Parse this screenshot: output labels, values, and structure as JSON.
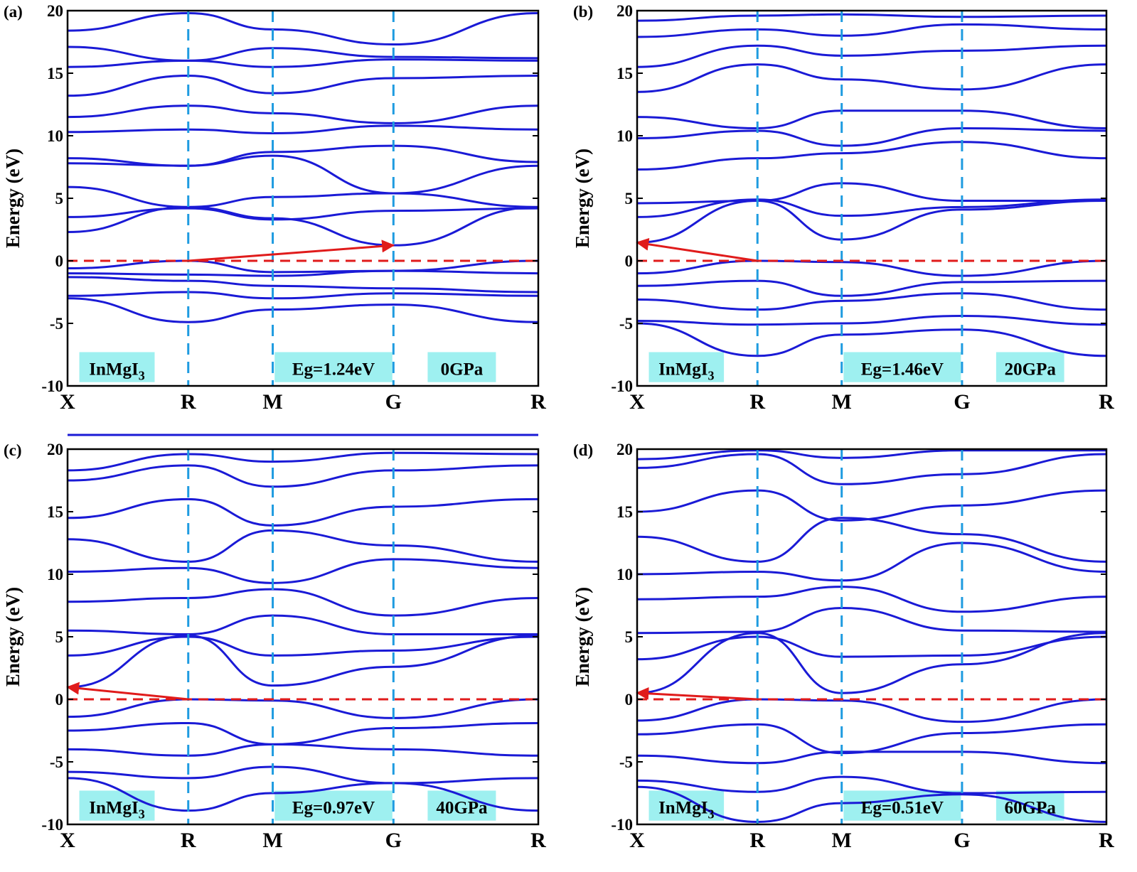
{
  "figure": {
    "ylabel": "Energy (eV)",
    "y_ticks": [
      "20",
      "15",
      "10",
      "5",
      "0",
      "-5",
      "-10"
    ],
    "k_labels": [
      "X",
      "R",
      "M",
      "G",
      "R"
    ],
    "material_prefix": "InMgI",
    "material_subscript": "3"
  },
  "colors": {
    "band": "#1a1ad6",
    "fermi": "#e01b1b",
    "arrow": "#e01b1b",
    "kline": "#1e9be0",
    "label_bg": "#9ef0f0"
  },
  "chart_data": [
    {
      "type": "line",
      "panel": "(a)",
      "xlabel": "",
      "ylabel": "Energy (eV)",
      "ylim": [
        -10,
        20
      ],
      "k_points": [
        "X",
        "R",
        "M",
        "G",
        "R"
      ],
      "k_positions": [
        0,
        1,
        1.7,
        2.7,
        3.9
      ],
      "fermi_level": 0,
      "band_gap": "Eg=1.24eV",
      "pressure": "0GPa",
      "gap_arrow": {
        "from": [
          1,
          0
        ],
        "to": [
          2.7,
          1.24
        ]
      },
      "series": [
        {
          "name": "band-v1",
          "values": [
            -0.6,
            0.0,
            -0.9,
            -0.8,
            0.0
          ]
        },
        {
          "name": "band-v2",
          "values": [
            -1.0,
            -1.1,
            -1.2,
            -0.8,
            -1.0
          ]
        },
        {
          "name": "band-v3",
          "values": [
            -1.3,
            -1.6,
            -2.0,
            -2.2,
            -2.5
          ]
        },
        {
          "name": "band-v4",
          "values": [
            -2.8,
            -2.5,
            -3.0,
            -2.6,
            -2.8
          ]
        },
        {
          "name": "band-v5",
          "values": [
            -3.0,
            -4.9,
            -3.9,
            -3.5,
            -4.9
          ]
        },
        {
          "name": "band-c1",
          "values": [
            2.3,
            4.3,
            3.4,
            1.24,
            4.3
          ]
        },
        {
          "name": "band-c2",
          "values": [
            3.5,
            4.2,
            3.3,
            4.0,
            4.2
          ]
        },
        {
          "name": "band-c3",
          "values": [
            5.9,
            4.3,
            5.1,
            5.4,
            4.3
          ]
        },
        {
          "name": "band-c4",
          "values": [
            7.8,
            7.6,
            8.4,
            5.4,
            7.6
          ]
        },
        {
          "name": "band-c5",
          "values": [
            8.2,
            7.6,
            8.7,
            9.2,
            7.9
          ]
        },
        {
          "name": "band-c6",
          "values": [
            10.3,
            10.5,
            10.2,
            10.8,
            10.5
          ]
        },
        {
          "name": "band-c7",
          "values": [
            11.5,
            12.4,
            11.8,
            11.0,
            12.4
          ]
        },
        {
          "name": "band-c8",
          "values": [
            13.2,
            14.8,
            13.4,
            14.6,
            14.8
          ]
        },
        {
          "name": "band-c9",
          "values": [
            15.5,
            16.0,
            15.5,
            16.1,
            16.0
          ]
        },
        {
          "name": "band-c10",
          "values": [
            17.1,
            16.0,
            17.0,
            16.3,
            16.2
          ]
        },
        {
          "name": "band-c11",
          "values": [
            18.4,
            19.8,
            18.5,
            17.3,
            19.8
          ]
        }
      ]
    },
    {
      "type": "line",
      "panel": "(b)",
      "xlabel": "",
      "ylabel": "Energy (eV)",
      "ylim": [
        -10,
        20
      ],
      "k_points": [
        "X",
        "R",
        "M",
        "G",
        "R"
      ],
      "k_positions": [
        0,
        1,
        1.7,
        2.7,
        3.9
      ],
      "fermi_level": 0,
      "band_gap": "Eg=1.46eV",
      "pressure": "20GPa",
      "gap_arrow": {
        "from": [
          1,
          0
        ],
        "to": [
          0,
          1.46
        ]
      },
      "series": [
        {
          "name": "band-v1",
          "values": [
            -1.0,
            0.0,
            -0.1,
            -1.2,
            0.0
          ]
        },
        {
          "name": "band-v2",
          "values": [
            -2.0,
            -1.6,
            -2.8,
            -1.7,
            -1.6
          ]
        },
        {
          "name": "band-v3",
          "values": [
            -3.1,
            -3.9,
            -3.2,
            -2.6,
            -3.9
          ]
        },
        {
          "name": "band-v4",
          "values": [
            -4.8,
            -5.1,
            -5.0,
            -4.4,
            -5.1
          ]
        },
        {
          "name": "band-v5",
          "values": [
            -5.0,
            -7.6,
            -5.9,
            -5.5,
            -7.6
          ]
        },
        {
          "name": "band-c1",
          "values": [
            1.46,
            4.8,
            1.7,
            4.1,
            4.8
          ]
        },
        {
          "name": "band-c2",
          "values": [
            3.5,
            4.9,
            3.6,
            4.3,
            4.9
          ]
        },
        {
          "name": "band-c3",
          "values": [
            4.6,
            4.8,
            6.2,
            4.8,
            4.8
          ]
        },
        {
          "name": "band-c4",
          "values": [
            7.3,
            8.2,
            8.6,
            9.5,
            8.2
          ]
        },
        {
          "name": "band-c5",
          "values": [
            9.8,
            10.4,
            9.2,
            10.6,
            10.4
          ]
        },
        {
          "name": "band-c6",
          "values": [
            11.5,
            10.6,
            12.0,
            12.0,
            10.6
          ]
        },
        {
          "name": "band-c7",
          "values": [
            13.5,
            15.7,
            14.5,
            13.7,
            15.7
          ]
        },
        {
          "name": "band-c8",
          "values": [
            15.5,
            17.2,
            16.4,
            16.8,
            17.2
          ]
        },
        {
          "name": "band-c9",
          "values": [
            17.9,
            18.5,
            18.0,
            18.9,
            18.5
          ]
        },
        {
          "name": "band-c10",
          "values": [
            19.2,
            19.6,
            19.7,
            19.5,
            19.6
          ]
        }
      ]
    },
    {
      "type": "line",
      "panel": "(c)",
      "xlabel": "",
      "ylabel": "Energy (eV)",
      "ylim": [
        -10,
        20
      ],
      "k_points": [
        "X",
        "R",
        "M",
        "G",
        "R"
      ],
      "k_positions": [
        0,
        1,
        1.7,
        2.7,
        3.9
      ],
      "fermi_level": 0,
      "band_gap": "Eg=0.97eV",
      "pressure": "40GPa",
      "gap_arrow": {
        "from": [
          1,
          0
        ],
        "to": [
          0,
          0.97
        ]
      },
      "series": [
        {
          "name": "band-v1",
          "values": [
            -1.4,
            0.0,
            -0.1,
            -1.5,
            0.0
          ]
        },
        {
          "name": "band-v2",
          "values": [
            -2.5,
            -1.9,
            -3.6,
            -2.3,
            -1.9
          ]
        },
        {
          "name": "band-v3",
          "values": [
            -4.0,
            -4.5,
            -3.6,
            -4.0,
            -4.5
          ]
        },
        {
          "name": "band-v4",
          "values": [
            -5.8,
            -6.3,
            -5.4,
            -6.7,
            -6.3
          ]
        },
        {
          "name": "band-v5",
          "values": [
            -6.3,
            -8.9,
            -7.5,
            -6.7,
            -8.9
          ]
        },
        {
          "name": "band-c1",
          "values": [
            0.97,
            5.1,
            1.1,
            2.6,
            5.1
          ]
        },
        {
          "name": "band-c2",
          "values": [
            3.5,
            5.0,
            3.5,
            3.9,
            5.0
          ]
        },
        {
          "name": "band-c3",
          "values": [
            5.5,
            5.2,
            6.7,
            5.2,
            5.2
          ]
        },
        {
          "name": "band-c4",
          "values": [
            7.8,
            8.1,
            8.8,
            6.7,
            8.1
          ]
        },
        {
          "name": "band-c5",
          "values": [
            10.2,
            10.5,
            9.3,
            11.2,
            10.5
          ]
        },
        {
          "name": "band-c6",
          "values": [
            12.8,
            11.0,
            13.5,
            12.3,
            11.0
          ]
        },
        {
          "name": "band-c7",
          "values": [
            14.5,
            16.0,
            13.9,
            15.4,
            16.0
          ]
        },
        {
          "name": "band-c8",
          "values": [
            17.5,
            18.7,
            17.0,
            18.3,
            18.7
          ]
        },
        {
          "name": "band-c9",
          "values": [
            18.3,
            19.6,
            19.0,
            19.7,
            19.6
          ]
        }
      ]
    },
    {
      "type": "line",
      "panel": "(d)",
      "xlabel": "",
      "ylabel": "Energy (eV)",
      "ylim": [
        -10,
        20
      ],
      "k_points": [
        "X",
        "R",
        "M",
        "G",
        "R"
      ],
      "k_positions": [
        0,
        1,
        1.7,
        2.7,
        3.9
      ],
      "fermi_level": 0,
      "band_gap": "Eg=0.51eV",
      "pressure": "60GPa",
      "gap_arrow": {
        "from": [
          1,
          0
        ],
        "to": [
          0,
          0.51
        ]
      },
      "series": [
        {
          "name": "band-v1",
          "values": [
            -1.7,
            0.0,
            -0.1,
            -1.8,
            0.0
          ]
        },
        {
          "name": "band-v2",
          "values": [
            -2.8,
            -2.0,
            -4.3,
            -2.7,
            -2.0
          ]
        },
        {
          "name": "band-v3",
          "values": [
            -4.5,
            -5.1,
            -4.2,
            -4.2,
            -5.1
          ]
        },
        {
          "name": "band-v4",
          "values": [
            -6.5,
            -7.4,
            -6.2,
            -7.5,
            -7.4
          ]
        },
        {
          "name": "band-v5",
          "values": [
            -7.0,
            -9.8,
            -8.3,
            -7.6,
            -9.8
          ]
        },
        {
          "name": "band-c1",
          "values": [
            0.51,
            5.3,
            0.5,
            2.8,
            5.3
          ]
        },
        {
          "name": "band-c2",
          "values": [
            3.2,
            5.0,
            3.4,
            3.5,
            5.0
          ]
        },
        {
          "name": "band-c3",
          "values": [
            5.3,
            5.4,
            7.3,
            5.5,
            5.4
          ]
        },
        {
          "name": "band-c4",
          "values": [
            8.0,
            8.2,
            9.0,
            7.0,
            8.2
          ]
        },
        {
          "name": "band-c5",
          "values": [
            10.0,
            10.2,
            9.5,
            12.5,
            10.2
          ]
        },
        {
          "name": "band-c6",
          "values": [
            13.0,
            11.0,
            14.5,
            13.2,
            11.0
          ]
        },
        {
          "name": "band-c7",
          "values": [
            15.0,
            16.7,
            14.3,
            15.5,
            16.7
          ]
        },
        {
          "name": "band-c8",
          "values": [
            18.5,
            19.6,
            17.2,
            18.0,
            19.6
          ]
        },
        {
          "name": "band-c9",
          "values": [
            19.2,
            19.9,
            19.3,
            19.9,
            19.9
          ]
        }
      ]
    }
  ]
}
